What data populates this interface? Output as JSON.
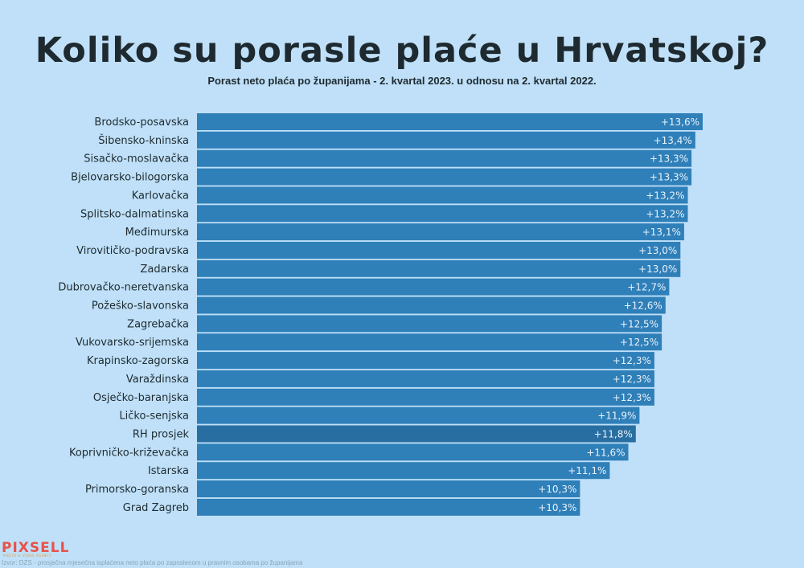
{
  "title": "Koliko su porasle plaće u Hrvatskoj?",
  "subtitle": "Porast neto plaća po županijama - 2. kvartal 2023. u odnosu na 2. kvartal 2022.",
  "source": "Izvor: DZS - prosječna mjesečna isplaćena neto plaća po zaposlenom u pravnim osobama po županijama",
  "logo": {
    "name": "PIXSELL",
    "tagline": "PHOTO & VIDEO AGENCY"
  },
  "colors": {
    "background": "#bfe0f8",
    "bar": "#2f7fb9",
    "highlight_bar": "#296ea1",
    "bar_text": "#e9f3fb"
  },
  "chart_data": {
    "type": "bar",
    "orientation": "horizontal",
    "grid": false,
    "legend": "none",
    "xlim": [
      0,
      13.6
    ],
    "categories": [
      "Brodsko-posavska",
      "Šibensko-kninska",
      "Sisačko-moslavačka",
      "Bjelovarsko-bilogorska",
      "Karlovačka",
      "Splitsko-dalmatinska",
      "Međimurska",
      "Virovitičko-podravska",
      "Zadarska",
      "Dubrovačko-neretvanska",
      "Požeško-slavonska",
      "Zagrebačka",
      "Vukovarsko-srijemska",
      "Krapinsko-zagorska",
      "Varaždinska",
      "Osječko-baranjska",
      "Ličko-senjska",
      "RH prosjek",
      "Koprivničko-križevačka",
      "Istarska",
      "Primorsko-goranska",
      "Grad Zagreb"
    ],
    "values": [
      13.6,
      13.4,
      13.3,
      13.3,
      13.2,
      13.2,
      13.1,
      13.0,
      13.0,
      12.7,
      12.6,
      12.5,
      12.5,
      12.3,
      12.3,
      12.3,
      11.9,
      11.8,
      11.6,
      11.1,
      10.3,
      10.3
    ],
    "value_labels": [
      "+13,6%",
      "+13,4%",
      "+13,3%",
      "+13,3%",
      "+13,2%",
      "+13,2%",
      "+13,1%",
      "+13,0%",
      "+13,0%",
      "+12,7%",
      "+12,6%",
      "+12,5%",
      "+12,5%",
      "+12,3%",
      "+12,3%",
      "+12,3%",
      "+11,9%",
      "+11,8%",
      "+11,6%",
      "+11,1%",
      "+10,3%",
      "+10,3%"
    ],
    "highlight": "RH prosjek"
  }
}
